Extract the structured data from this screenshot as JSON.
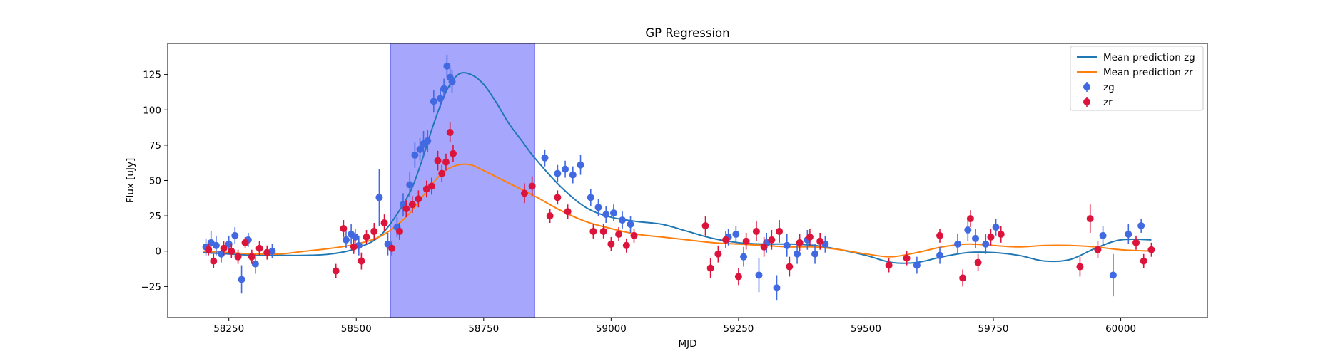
{
  "chart_data": {
    "type": "scatter",
    "title": "GP Regression",
    "xlabel": "MJD",
    "ylabel": "Flux [uJy]",
    "xlim": [
      58130,
      60170
    ],
    "ylim": [
      -47,
      147
    ],
    "xticks": [
      58250,
      58500,
      58750,
      59000,
      59250,
      59500,
      59750,
      60000
    ],
    "yticks": [
      -25,
      0,
      25,
      50,
      75,
      100,
      125
    ],
    "grid": false,
    "legend_position": "top-right",
    "highlight_band": {
      "x0": 58567,
      "x1": 58850,
      "color": "#a6a6fd"
    },
    "colors": {
      "mean_zg": "#1f77b4",
      "mean_zr": "#ff7f0e",
      "points_zg": "#4169e1",
      "points_zr": "#dc143c"
    },
    "series": [
      {
        "name": "Mean prediction zg",
        "kind": "line",
        "x": [
          58200,
          58250,
          58300,
          58350,
          58400,
          58450,
          58500,
          58550,
          58600,
          58625,
          58650,
          58675,
          58700,
          58725,
          58750,
          58775,
          58800,
          58825,
          58850,
          58900,
          58950,
          59000,
          59050,
          59100,
          59150,
          59200,
          59250,
          59300,
          59350,
          59400,
          59450,
          59500,
          59550,
          59600,
          59650,
          59700,
          59750,
          59800,
          59850,
          59900,
          59950,
          60000,
          60060
        ],
        "y": [
          -1,
          -2,
          -3,
          -3,
          -3,
          -2,
          2,
          12,
          38,
          60,
          88,
          112,
          125,
          125,
          118,
          105,
          90,
          78,
          66,
          46,
          31,
          24,
          21,
          19,
          14,
          9,
          6,
          5,
          5,
          4,
          1,
          -3,
          -8,
          -8,
          -4,
          -1,
          -1,
          -3,
          -7,
          -6,
          2,
          8,
          8
        ]
      },
      {
        "name": "Mean prediction zr",
        "kind": "line",
        "x": [
          58200,
          58250,
          58300,
          58350,
          58400,
          58450,
          58500,
          58550,
          58600,
          58650,
          58675,
          58700,
          58725,
          58750,
          58800,
          58850,
          58900,
          58950,
          59000,
          59050,
          59100,
          59150,
          59200,
          59250,
          59300,
          59350,
          59400,
          59450,
          59500,
          59550,
          59600,
          59650,
          59700,
          59750,
          59800,
          59850,
          59900,
          59950,
          60000,
          60060
        ],
        "y": [
          0,
          -1,
          -2,
          -2,
          0,
          2,
          5,
          11,
          25,
          48,
          57,
          61,
          61,
          57,
          48,
          39,
          29,
          21,
          16,
          12,
          10,
          8,
          6,
          5,
          4,
          3,
          3,
          1,
          -2,
          -4,
          -1,
          3,
          5,
          4,
          3,
          4,
          4,
          3,
          1,
          0
        ]
      },
      {
        "name": "zg",
        "kind": "points",
        "x": [
          58205,
          58215,
          58225,
          58235,
          58250,
          58262,
          58275,
          58288,
          58302,
          58335,
          58480,
          58490,
          58498,
          58505,
          58545,
          58562,
          58580,
          58592,
          58605,
          58615,
          58625,
          58632,
          58640,
          58652,
          58665,
          58672,
          58678,
          58684,
          58688,
          58870,
          58895,
          58910,
          58925,
          58940,
          58960,
          58975,
          58990,
          59005,
          59022,
          59038,
          59230,
          59245,
          59260,
          59290,
          59305,
          59325,
          59345,
          59365,
          59385,
          59400,
          59420,
          59600,
          59645,
          59680,
          59700,
          59715,
          59735,
          59755,
          59965,
          59985,
          60015,
          60040
        ],
        "y": [
          3,
          6,
          4,
          -2,
          5,
          11,
          -20,
          8,
          -9,
          0,
          8,
          12,
          10,
          4,
          38,
          5,
          17,
          33,
          47,
          68,
          72,
          76,
          78,
          106,
          108,
          115,
          131,
          123,
          120,
          66,
          55,
          58,
          54,
          61,
          38,
          31,
          26,
          27,
          22,
          19,
          10,
          12,
          -4,
          -17,
          6,
          -26,
          4,
          -2,
          8,
          -2,
          5,
          -10,
          -3,
          5,
          15,
          9,
          5,
          17,
          11,
          -17,
          12,
          18
        ],
        "yerr": [
          6,
          8,
          7,
          6,
          6,
          6,
          10,
          5,
          7,
          5,
          6,
          7,
          6,
          7,
          20,
          8,
          7,
          8,
          9,
          9,
          8,
          9,
          8,
          8,
          7,
          7,
          8,
          7,
          8,
          6,
          6,
          6,
          6,
          7,
          6,
          6,
          6,
          6,
          6,
          6,
          6,
          6,
          7,
          12,
          7,
          9,
          8,
          7,
          7,
          7,
          6,
          6,
          6,
          7,
          8,
          7,
          7,
          6,
          7,
          15,
          7,
          5
        ]
      },
      {
        "name": "zr",
        "kind": "points",
        "x": [
          58210,
          58220,
          58240,
          58255,
          58268,
          58282,
          58295,
          58310,
          58325,
          58460,
          58475,
          58495,
          58510,
          58520,
          58535,
          58555,
          58570,
          58585,
          58598,
          58610,
          58622,
          58638,
          58648,
          58660,
          58668,
          58676,
          58684,
          58690,
          58830,
          58845,
          58880,
          58895,
          58915,
          58965,
          58985,
          59000,
          59015,
          59030,
          59045,
          59185,
          59195,
          59210,
          59225,
          59250,
          59265,
          59285,
          59300,
          59315,
          59330,
          59350,
          59370,
          59390,
          59410,
          59545,
          59580,
          59645,
          59690,
          59705,
          59720,
          59745,
          59765,
          59920,
          59940,
          59955,
          60030,
          60045,
          60060
        ],
        "y": [
          1,
          -7,
          2,
          0,
          -4,
          6,
          -4,
          2,
          -1,
          -14,
          16,
          3,
          -7,
          10,
          14,
          20,
          2,
          14,
          30,
          33,
          37,
          44,
          46,
          64,
          55,
          63,
          84,
          69,
          41,
          46,
          25,
          38,
          28,
          14,
          14,
          5,
          12,
          4,
          11,
          18,
          -12,
          -2,
          8,
          -18,
          7,
          14,
          3,
          8,
          14,
          -11,
          6,
          10,
          7,
          -10,
          -5,
          11,
          -19,
          23,
          -8,
          10,
          12,
          -11,
          23,
          1,
          6,
          -7,
          1
        ],
        "yerr": [
          4,
          5,
          5,
          5,
          5,
          4,
          5,
          5,
          5,
          5,
          6,
          5,
          6,
          5,
          6,
          6,
          5,
          6,
          6,
          6,
          6,
          6,
          6,
          7,
          6,
          6,
          7,
          6,
          7,
          7,
          5,
          5,
          5,
          5,
          5,
          5,
          5,
          5,
          5,
          7,
          7,
          6,
          6,
          6,
          6,
          7,
          7,
          7,
          8,
          7,
          6,
          6,
          6,
          5,
          5,
          5,
          6,
          6,
          6,
          6,
          6,
          7,
          10,
          6,
          5,
          5,
          5
        ]
      }
    ]
  }
}
